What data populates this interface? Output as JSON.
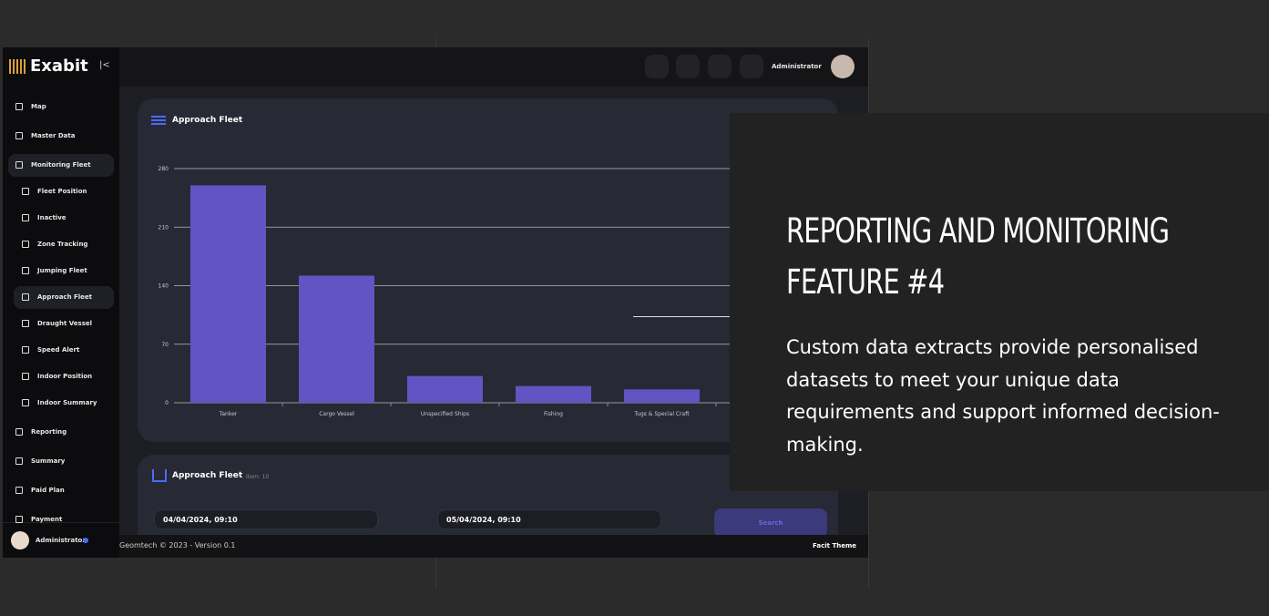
{
  "brand": "Exabit",
  "sidebar": {
    "items": [
      "Map",
      "Master Data",
      "Monitoring Fleet"
    ],
    "subitems": [
      "Fleet Position",
      "Inactive",
      "Zone Tracking",
      "Jumping Fleet",
      "Approach Fleet",
      "Draught Vessel",
      "Speed Alert",
      "Indoor Position",
      "Indoor Summary"
    ],
    "lower_items": [
      "Reporting",
      "Summary",
      "Paid Plan",
      "Payment"
    ],
    "user": "Administrator"
  },
  "header": {
    "user": "Administrator"
  },
  "chart": {
    "type": "bar",
    "title": "Approach Fleet",
    "categories": [
      "Tanker",
      "Cargo Vessel",
      "Unspecified Ships",
      "Fishing",
      "Tugs & Special Craft"
    ],
    "values": [
      260,
      152,
      32,
      20,
      16
    ],
    "color": "#6453c2",
    "ylim": [
      0,
      280
    ],
    "yticks": [
      0,
      70,
      140,
      210,
      280
    ],
    "grid": true
  },
  "table_card": {
    "title": "Approach Fleet",
    "count": "Item: 10",
    "start_date": "04/04/2024, 09:10",
    "end_date": "05/04/2024, 09:10",
    "button": "Search"
  },
  "footer": {
    "left": "Geomtech © 2023 - Version 0.1",
    "right": "Facit Theme"
  },
  "feature": {
    "title_line1": "REPORTING AND MONITORING",
    "title_line2": "FEATURE #4",
    "text": "Custom data extracts provide personalised datasets to meet your unique data requirements and support informed decision-making."
  }
}
